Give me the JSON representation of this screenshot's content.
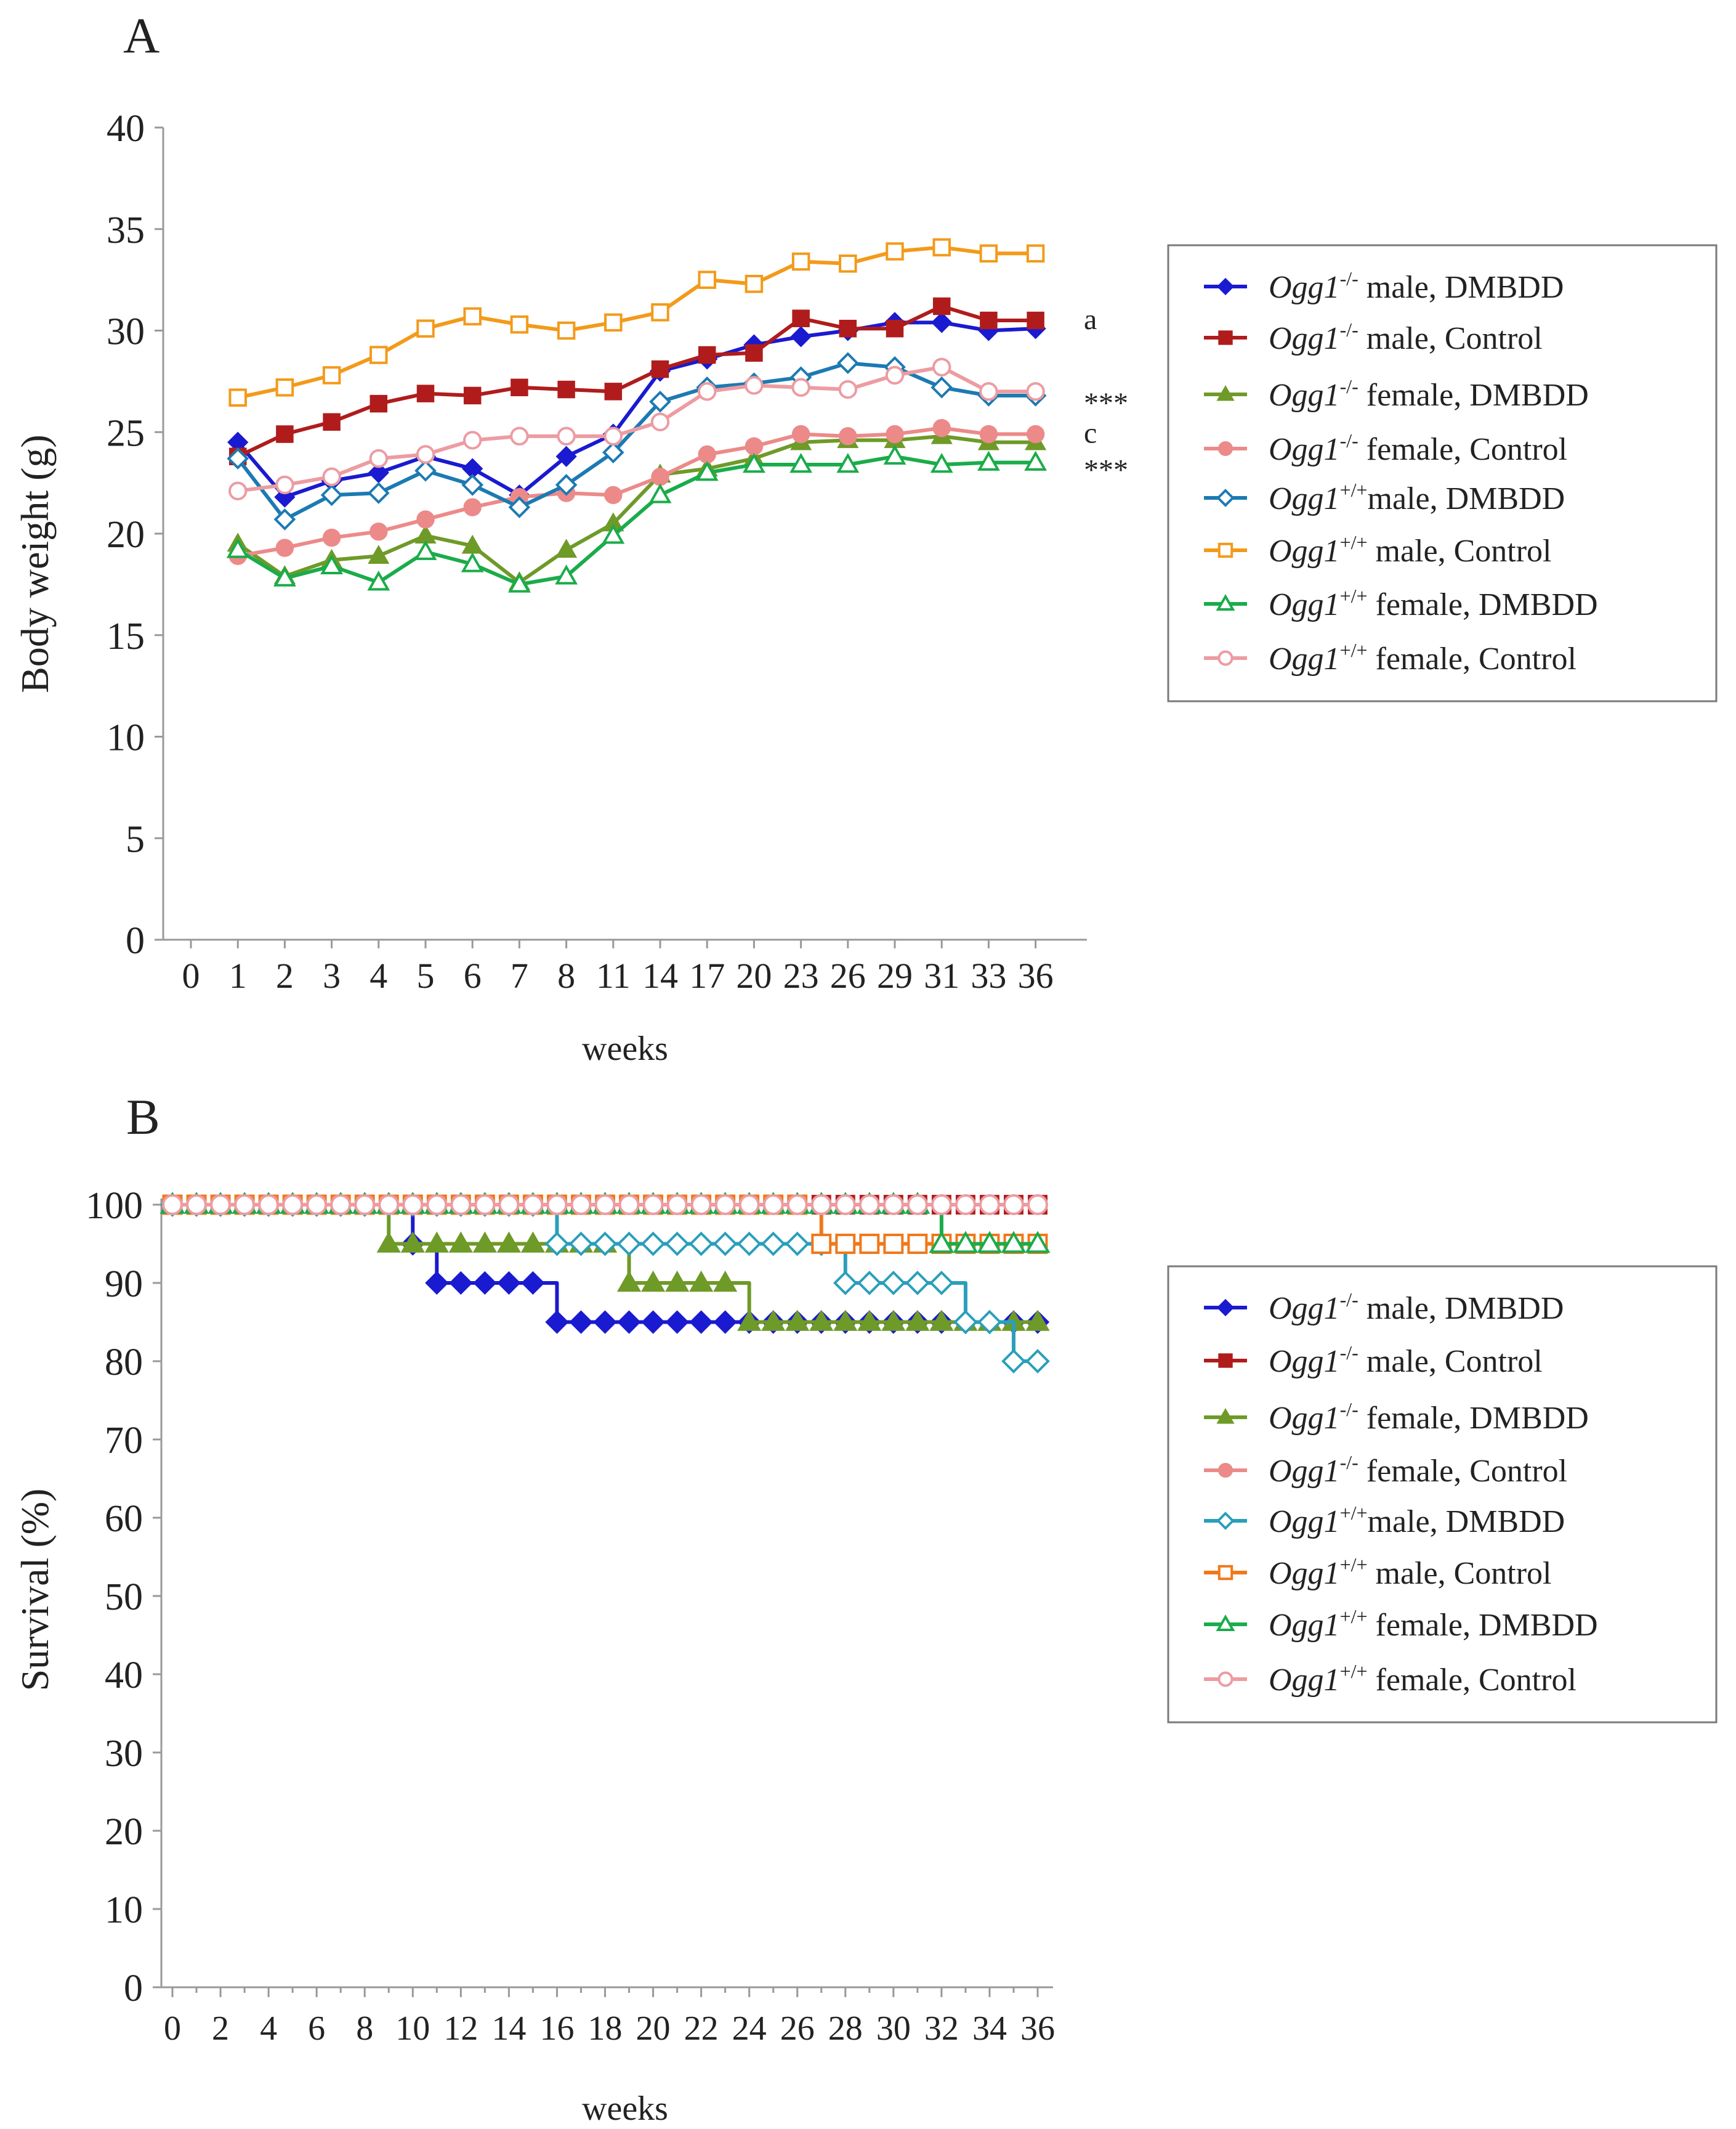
{
  "chart_data": [
    {
      "type": "line",
      "panel_label": "A",
      "title": "",
      "xlabel": "weeks",
      "ylabel": "Body weight (g)",
      "ylim": [
        0,
        40
      ],
      "y_ticks": [
        "0",
        "5",
        "10",
        "15",
        "20",
        "25",
        "30",
        "35",
        "40"
      ],
      "categories": [
        "0",
        "1",
        "2",
        "3",
        "4",
        "5",
        "6",
        "7",
        "8",
        "11",
        "14",
        "17",
        "20",
        "23",
        "26",
        "29",
        "31",
        "33",
        "36"
      ],
      "series": [
        {
          "name_em": "Ogg1",
          "name_sup": "-/-",
          "name_rest": " male, DMBDD",
          "color": "#1a1ad0",
          "marker": "diamond",
          "filled": true,
          "values": [
            null,
            24.5,
            21.8,
            22.6,
            23.0,
            23.8,
            23.2,
            21.9,
            23.8,
            24.9,
            28.0,
            28.6,
            29.3,
            29.7,
            30.0,
            30.4,
            30.4,
            30.0,
            30.1
          ]
        },
        {
          "name_em": "Ogg1",
          "name_sup": "-/-",
          "name_rest": " male, Control",
          "color": "#b01c1c",
          "marker": "square",
          "filled": true,
          "values": [
            null,
            23.8,
            24.9,
            25.5,
            26.4,
            26.9,
            26.8,
            27.2,
            27.1,
            27.0,
            28.1,
            28.8,
            28.9,
            30.6,
            30.1,
            30.1,
            31.2,
            30.5,
            30.5
          ]
        },
        {
          "name_em": "Ogg1",
          "name_sup": "-/-",
          "name_rest": " female, DMBDD",
          "color": "#6e9a28",
          "marker": "triangle",
          "filled": true,
          "values": [
            null,
            19.5,
            17.9,
            18.7,
            18.9,
            19.9,
            19.4,
            17.6,
            19.2,
            20.5,
            22.9,
            23.2,
            23.7,
            24.5,
            24.6,
            24.6,
            24.8,
            24.5,
            24.5
          ]
        },
        {
          "name_em": "Ogg1",
          "name_sup": "-/-",
          "name_rest": " female, Control",
          "color": "#ec8a8a",
          "marker": "circle",
          "filled": true,
          "values": [
            null,
            18.9,
            19.3,
            19.8,
            20.1,
            20.7,
            21.3,
            21.8,
            22.0,
            21.9,
            22.8,
            23.9,
            24.3,
            24.9,
            24.8,
            24.9,
            25.2,
            24.9,
            24.9
          ]
        },
        {
          "name_em": "Ogg1",
          "name_sup": "+/+",
          "name_rest": "male, DMBDD",
          "color": "#1c7ab2",
          "marker": "diamond",
          "filled": false,
          "values": [
            null,
            23.7,
            20.7,
            21.9,
            22.0,
            23.1,
            22.4,
            21.3,
            22.4,
            24.0,
            26.5,
            27.2,
            27.4,
            27.7,
            28.4,
            28.2,
            27.2,
            26.8,
            26.8
          ]
        },
        {
          "name_em": "Ogg1",
          "name_sup": "+/+",
          "name_rest": " male, Control",
          "color": "#f39a1a",
          "marker": "square",
          "filled": false,
          "values": [
            null,
            26.7,
            27.2,
            27.8,
            28.8,
            30.1,
            30.7,
            30.3,
            30.0,
            30.4,
            30.9,
            32.5,
            32.3,
            33.4,
            33.3,
            33.9,
            34.1,
            33.8,
            33.8
          ]
        },
        {
          "name_em": "Ogg1",
          "name_sup": "+/+",
          "name_rest": " female, DMBDD",
          "color": "#1aac4a",
          "marker": "triangle",
          "filled": false,
          "values": [
            null,
            19.2,
            17.8,
            18.4,
            17.6,
            19.1,
            18.5,
            17.5,
            17.9,
            19.9,
            21.9,
            23.0,
            23.4,
            23.4,
            23.4,
            23.8,
            23.4,
            23.5,
            23.5
          ]
        },
        {
          "name_em": "Ogg1",
          "name_sup": "+/+",
          "name_rest": " female, Control",
          "color": "#ec9ca2",
          "marker": "circle",
          "filled": false,
          "values": [
            null,
            22.1,
            22.4,
            22.8,
            23.7,
            23.9,
            24.6,
            24.8,
            24.8,
            24.8,
            25.5,
            27.0,
            27.3,
            27.2,
            27.1,
            27.8,
            28.2,
            27.0,
            27.0
          ]
        }
      ],
      "annotations": [
        {
          "text": "a",
          "series": "Ogg1-/- male, Control"
        },
        {
          "text": "***",
          "series": "Ogg1+/+ male, DMBDD"
        },
        {
          "text": "c",
          "series": "Ogg1-/- female, Control"
        },
        {
          "text": "***",
          "series": "Ogg1+/+ female, DMBDD"
        }
      ],
      "legend_position": "right"
    },
    {
      "type": "line",
      "panel_label": "B",
      "title": "",
      "xlabel": "weeks",
      "ylabel": "Survival (%)",
      "ylim": [
        0,
        100
      ],
      "y_ticks": [
        "0",
        "10",
        "20",
        "30",
        "40",
        "50",
        "60",
        "70",
        "80",
        "90",
        "100"
      ],
      "x_ticks": [
        "0",
        "2",
        "4",
        "6",
        "8",
        "10",
        "12",
        "14",
        "16",
        "18",
        "20",
        "22",
        "24",
        "26",
        "28",
        "30",
        "32",
        "34",
        "36"
      ],
      "x_range": [
        0,
        36
      ],
      "series": [
        {
          "name_em": "Ogg1",
          "name_sup": "-/-",
          "name_rest": " male, DMBDD",
          "color": "#1a1ad0",
          "marker": "diamond",
          "filled": true,
          "steps": [
            [
              0,
              100
            ],
            [
              10,
              95
            ],
            [
              11,
              90
            ],
            [
              16,
              85
            ],
            [
              36,
              85
            ]
          ]
        },
        {
          "name_em": "Ogg1",
          "name_sup": "-/-",
          "name_rest": " male, Control",
          "color": "#b01c1c",
          "marker": "square",
          "filled": true,
          "steps": [
            [
              0,
              100
            ],
            [
              36,
              100
            ]
          ]
        },
        {
          "name_em": "Ogg1",
          "name_sup": "-/-",
          "name_rest": " female, DMBDD",
          "color": "#6e9a28",
          "marker": "triangle",
          "filled": true,
          "steps": [
            [
              0,
              100
            ],
            [
              9,
              95
            ],
            [
              19,
              90
            ],
            [
              24,
              85
            ],
            [
              36,
              85
            ]
          ]
        },
        {
          "name_em": "Ogg1",
          "name_sup": "-/-",
          "name_rest": " female, Control",
          "color": "#ec8a8a",
          "marker": "circle",
          "filled": true,
          "steps": [
            [
              0,
              100
            ],
            [
              36,
              100
            ]
          ]
        },
        {
          "name_em": "Ogg1",
          "name_sup": "+/+",
          "name_rest": "male, DMBDD",
          "color": "#2a9fba",
          "marker": "diamond",
          "filled": false,
          "steps": [
            [
              0,
              100
            ],
            [
              16,
              95
            ],
            [
              28,
              90
            ],
            [
              33,
              85
            ],
            [
              35,
              80
            ],
            [
              36,
              80
            ]
          ]
        },
        {
          "name_em": "Ogg1",
          "name_sup": "+/+",
          "name_rest": " male, Control",
          "color": "#f0781a",
          "marker": "square",
          "filled": false,
          "steps": [
            [
              0,
              100
            ],
            [
              27,
              95
            ],
            [
              36,
              95
            ]
          ]
        },
        {
          "name_em": "Ogg1",
          "name_sup": "+/+",
          "name_rest": " female, DMBDD",
          "color": "#1aac4a",
          "marker": "triangle",
          "filled": false,
          "steps": [
            [
              0,
              100
            ],
            [
              32,
              95
            ],
            [
              36,
              95
            ]
          ]
        },
        {
          "name_em": "Ogg1",
          "name_sup": "+/+",
          "name_rest": " female, Control",
          "color": "#ec9ca2",
          "marker": "circle",
          "filled": false,
          "steps": [
            [
              0,
              100
            ],
            [
              36,
              100
            ]
          ]
        }
      ],
      "legend_position": "right"
    }
  ]
}
